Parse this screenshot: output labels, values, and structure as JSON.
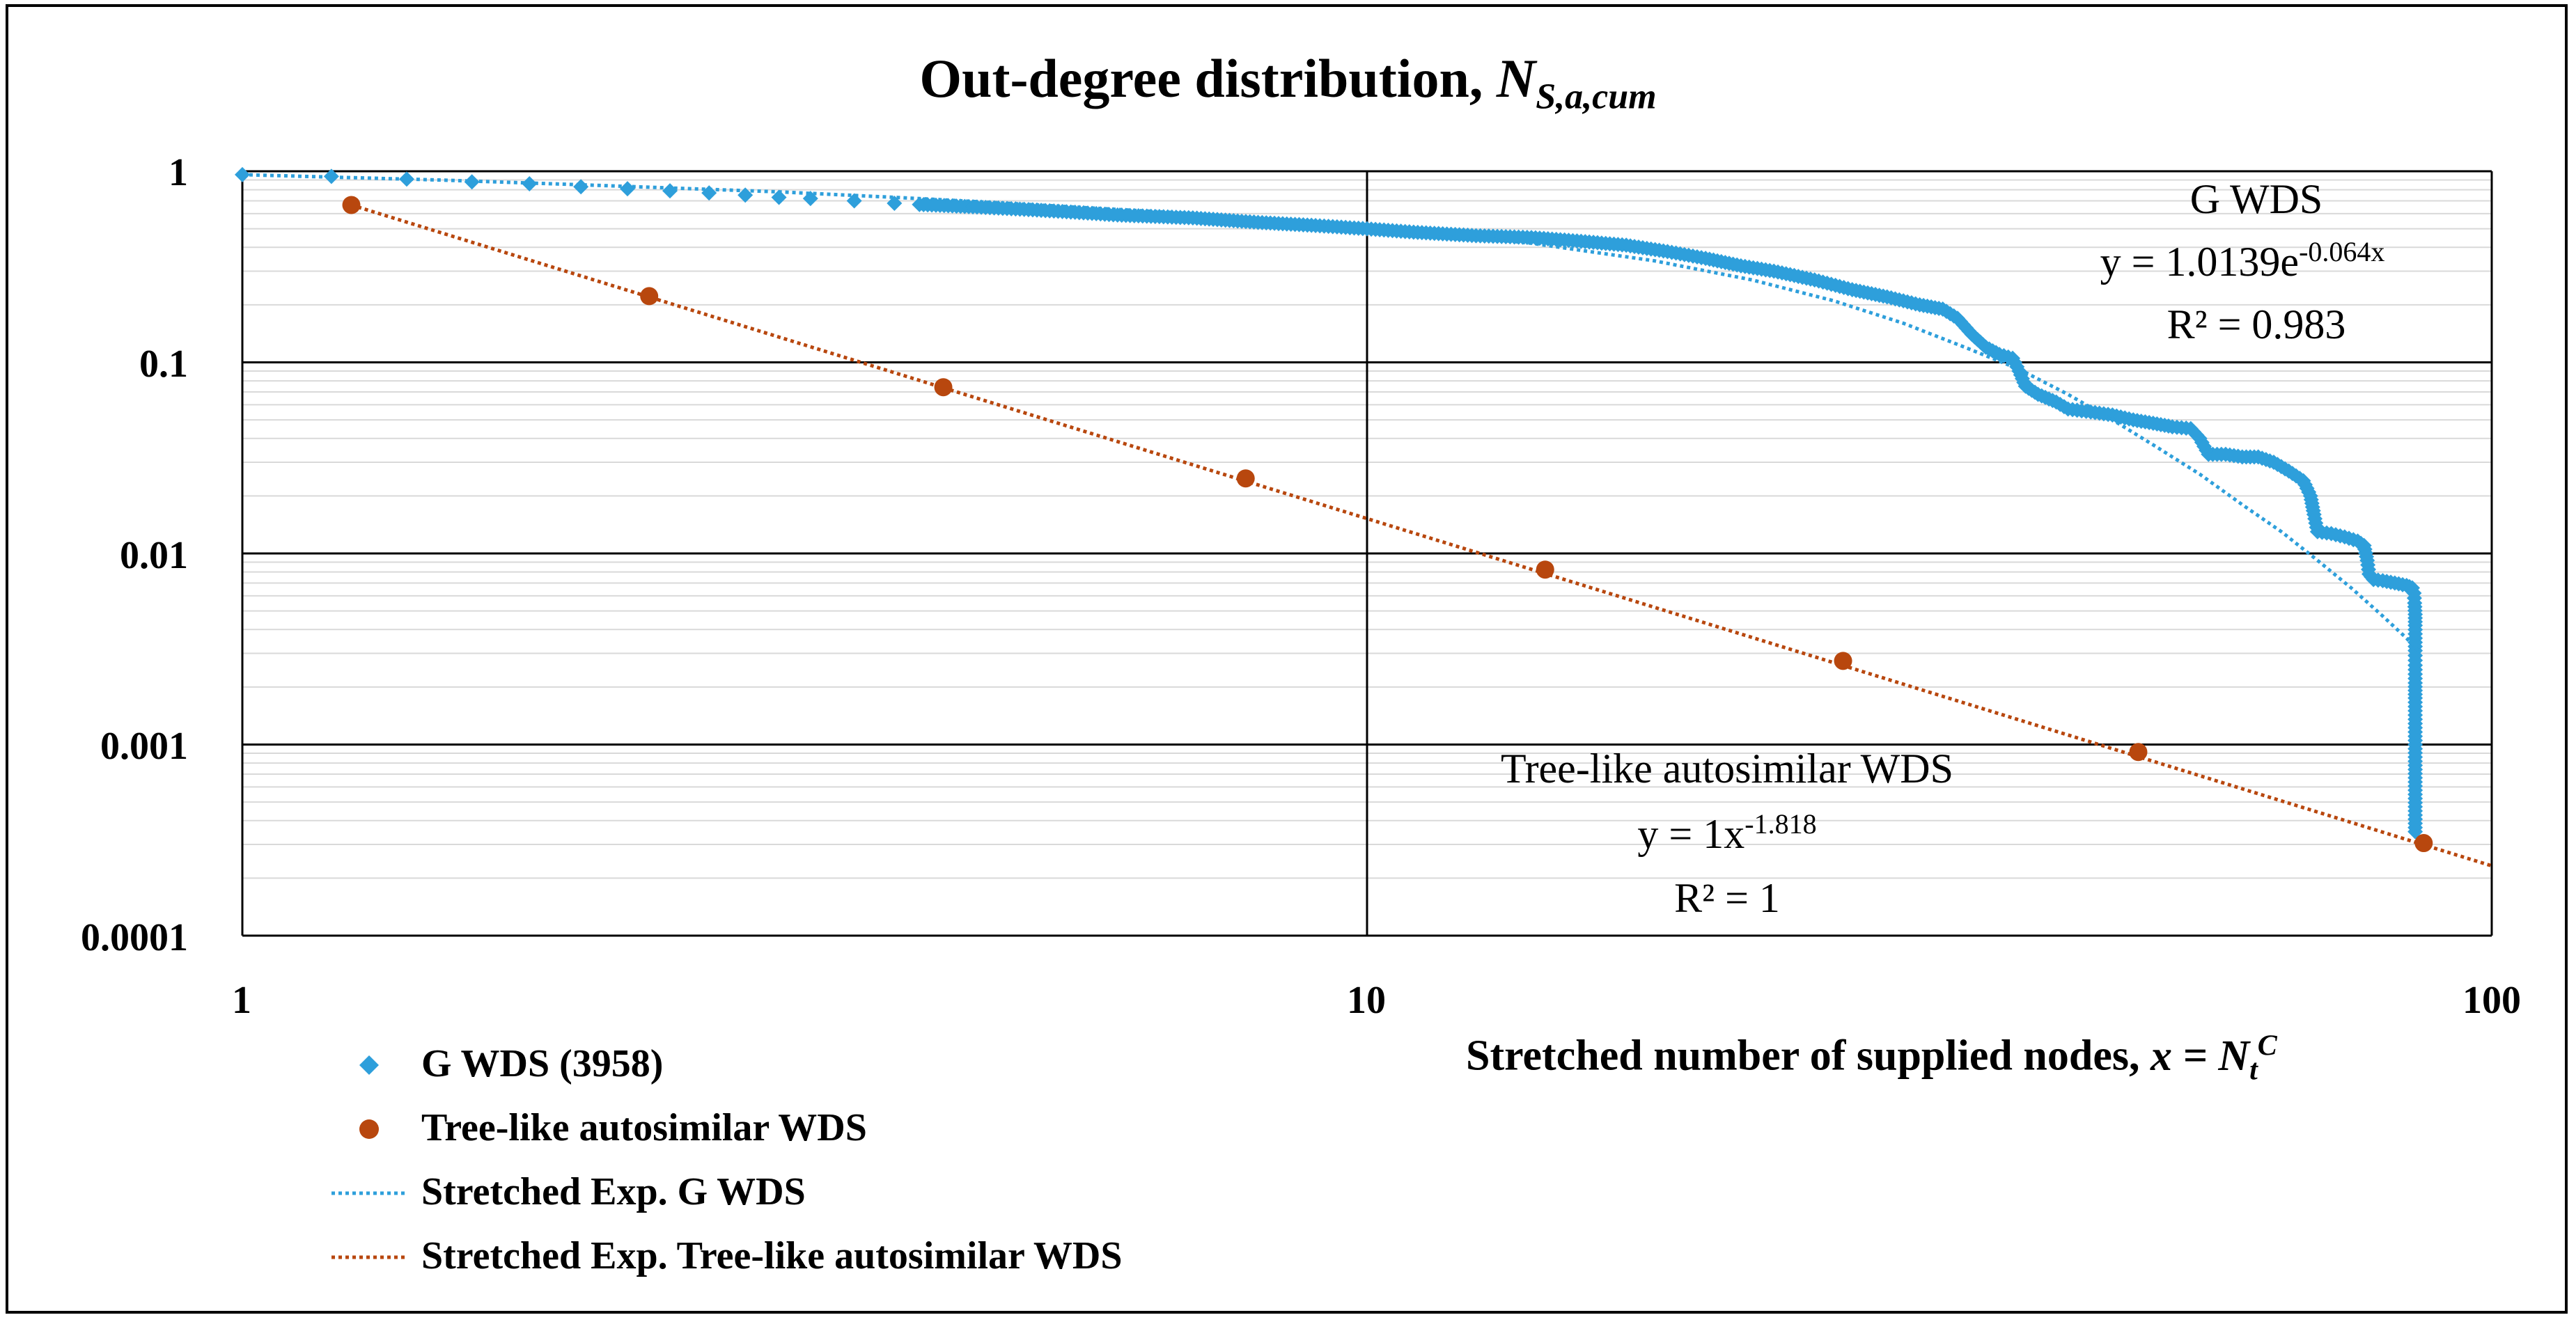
{
  "colors": {
    "g_wds": "#2E9FDB",
    "tree_wds": "#B8470E",
    "grid_major": "#000000",
    "grid_minor": "#D9D9D9"
  },
  "chart_data": {
    "type": "scatter",
    "title_main": "Out-degree distribution, ",
    "title_var": "N",
    "title_var_sub": "S,a,cum",
    "xlabel_main": "Stretched number of supplied nodes, ",
    "xlabel_var": "x = N",
    "xlabel_var_sub": "t",
    "xlabel_var_sup": "C",
    "x_scale": "log",
    "y_scale": "log",
    "xlim": [
      1,
      100
    ],
    "ylim": [
      0.0001,
      1
    ],
    "x_ticks": [
      "1",
      "10",
      "100"
    ],
    "y_ticks": [
      "1",
      "0.1",
      "0.01",
      "0.001",
      "0.0001"
    ],
    "series": [
      {
        "name": "G WDS (3958)",
        "marker": "diamond",
        "points": [
          [
            1.0,
            0.96
          ],
          [
            1.2,
            0.94
          ],
          [
            1.4,
            0.91
          ],
          [
            1.6,
            0.88
          ],
          [
            1.8,
            0.86
          ],
          [
            2.0,
            0.83
          ],
          [
            2.2,
            0.81
          ],
          [
            2.4,
            0.79
          ],
          [
            2.6,
            0.77
          ],
          [
            2.8,
            0.75
          ],
          [
            3.0,
            0.73
          ],
          [
            3.2,
            0.72
          ],
          [
            3.5,
            0.7
          ],
          [
            3.8,
            0.68
          ],
          [
            4.0,
            0.67
          ],
          [
            4.5,
            0.65
          ],
          [
            5.0,
            0.63
          ],
          [
            5.5,
            0.61
          ],
          [
            6.0,
            0.59
          ],
          [
            7.0,
            0.57
          ],
          [
            8.0,
            0.54
          ],
          [
            9.0,
            0.52
          ],
          [
            10.0,
            0.5
          ],
          [
            11.0,
            0.48
          ],
          [
            12.5,
            0.46
          ],
          [
            14.0,
            0.45
          ],
          [
            15.5,
            0.43
          ],
          [
            17.0,
            0.41
          ],
          [
            18.5,
            0.38
          ],
          [
            20.0,
            0.35
          ],
          [
            21.5,
            0.32
          ],
          [
            23.0,
            0.3
          ],
          [
            25.0,
            0.27
          ],
          [
            27.0,
            0.24
          ],
          [
            29.0,
            0.22
          ],
          [
            31.0,
            0.2
          ],
          [
            32.5,
            0.19
          ],
          [
            33.5,
            0.17
          ],
          [
            34.5,
            0.14
          ],
          [
            35.5,
            0.12
          ],
          [
            36.5,
            0.11
          ],
          [
            37.5,
            0.105
          ],
          [
            38.0,
            0.09
          ],
          [
            38.5,
            0.075
          ],
          [
            39.5,
            0.068
          ],
          [
            41.0,
            0.062
          ],
          [
            42.0,
            0.057
          ],
          [
            44.0,
            0.055
          ],
          [
            46.0,
            0.053
          ],
          [
            48.0,
            0.05
          ],
          [
            50.0,
            0.048
          ],
          [
            52.0,
            0.046
          ],
          [
            54.0,
            0.045
          ],
          [
            55.0,
            0.04
          ],
          [
            56.0,
            0.033
          ],
          [
            58.0,
            0.033
          ],
          [
            60.0,
            0.032
          ],
          [
            62.0,
            0.032
          ],
          [
            64.0,
            0.03
          ],
          [
            66.0,
            0.027
          ],
          [
            68.0,
            0.024
          ],
          [
            69.0,
            0.02
          ],
          [
            69.5,
            0.016
          ],
          [
            70.0,
            0.013
          ],
          [
            72.0,
            0.0127
          ],
          [
            74.0,
            0.0122
          ],
          [
            76.0,
            0.0116
          ],
          [
            77.0,
            0.011
          ],
          [
            77.5,
            0.0092
          ],
          [
            77.8,
            0.0078
          ],
          [
            78.5,
            0.0073
          ],
          [
            80.0,
            0.0072
          ],
          [
            82.0,
            0.007
          ],
          [
            84.0,
            0.0068
          ],
          [
            85.0,
            0.0066
          ],
          [
            85.3,
            0.0062
          ],
          [
            85.4,
            0.0055
          ],
          [
            85.5,
            0.0048
          ],
          [
            85.5,
            0.0042
          ],
          [
            85.5,
            0.0036
          ],
          [
            85.5,
            0.0031
          ],
          [
            85.5,
            0.0026
          ],
          [
            85.5,
            0.0021
          ],
          [
            85.5,
            0.00175
          ],
          [
            85.5,
            0.00105
          ],
          [
            85.5,
            0.00035
          ]
        ]
      },
      {
        "name": "Tree-like autosimilar WDS",
        "marker": "circle",
        "points": [
          [
            1.25,
            0.666
          ],
          [
            2.3,
            0.222
          ],
          [
            4.2,
            0.0741
          ],
          [
            7.8,
            0.0247
          ],
          [
            14.4,
            0.00823
          ],
          [
            26.5,
            0.00274
          ],
          [
            48.5,
            0.000914
          ],
          [
            87.0,
            0.000305
          ]
        ]
      },
      {
        "name": "Stretched Exp. G WDS",
        "line": "dotted",
        "points": [
          [
            1.0,
            0.96
          ],
          [
            1.5,
            0.9
          ],
          [
            2.0,
            0.85
          ],
          [
            3.0,
            0.78
          ],
          [
            4.0,
            0.72
          ],
          [
            5.0,
            0.67
          ],
          [
            7.0,
            0.6
          ],
          [
            10.0,
            0.51
          ],
          [
            14.0,
            0.42
          ],
          [
            18.0,
            0.34
          ],
          [
            22.0,
            0.27
          ],
          [
            26.0,
            0.21
          ],
          [
            30.0,
            0.16
          ],
          [
            34.0,
            0.12
          ],
          [
            38.0,
            0.092
          ],
          [
            42.0,
            0.068
          ],
          [
            46.0,
            0.05
          ],
          [
            50.0,
            0.037
          ],
          [
            55.0,
            0.026
          ],
          [
            60.0,
            0.018
          ],
          [
            65.0,
            0.013
          ],
          [
            70.0,
            0.0092
          ],
          [
            75.0,
            0.0066
          ],
          [
            80.0,
            0.0047
          ],
          [
            84.0,
            0.0036
          ],
          [
            86.0,
            0.0031
          ]
        ]
      },
      {
        "name": "Stretched Exp. Tree-like autosimilar WDS",
        "line": "dotted",
        "points": [
          [
            1.25,
            0.666
          ],
          [
            100.0,
            0.000232
          ]
        ]
      }
    ],
    "annotations": {
      "g_wds_label": "G WDS",
      "g_wds_eq_prefix": "y = 1.0139e",
      "g_wds_eq_exp": "-0.064x",
      "g_wds_r2": "R² = 0.983",
      "tree_label": "Tree-like autosimilar WDS",
      "tree_eq_prefix": "y = 1x",
      "tree_eq_exp": "-1.818",
      "tree_r2": "R² = 1"
    },
    "legend": [
      "G WDS (3958)",
      "Tree-like autosimilar WDS",
      "Stretched Exp. G WDS",
      "Stretched Exp. Tree-like autosimilar WDS"
    ]
  }
}
